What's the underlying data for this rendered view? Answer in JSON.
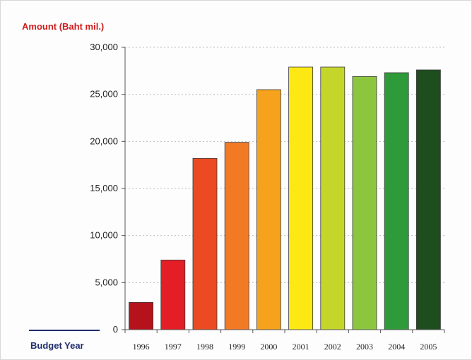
{
  "chart_data": {
    "type": "bar",
    "title": "",
    "ylabel": "Amount (Baht mil.)",
    "xlabel": "Budget Year",
    "categories": [
      "1996",
      "1997",
      "1998",
      "1999",
      "2000",
      "2001",
      "2002",
      "2003",
      "2004",
      "2005"
    ],
    "values": [
      2900,
      7400,
      18200,
      19900,
      25500,
      27900,
      27900,
      26900,
      27300,
      27600
    ],
    "ylim": [
      0,
      30000
    ],
    "yticks": [
      0,
      5000,
      10000,
      15000,
      20000,
      25000,
      30000
    ],
    "ytick_labels": [
      "0",
      "5,000",
      "10,000",
      "15,000",
      "20,000",
      "25,000",
      "30,000"
    ],
    "grid": "dotted horizontal",
    "legend": "none",
    "colors": [
      "#b5121b",
      "#e41e26",
      "#ec4a22",
      "#f37a25",
      "#f7a21c",
      "#fde814",
      "#c5d62b",
      "#8cc63f",
      "#2e9a3a",
      "#1e4d1e"
    ]
  }
}
